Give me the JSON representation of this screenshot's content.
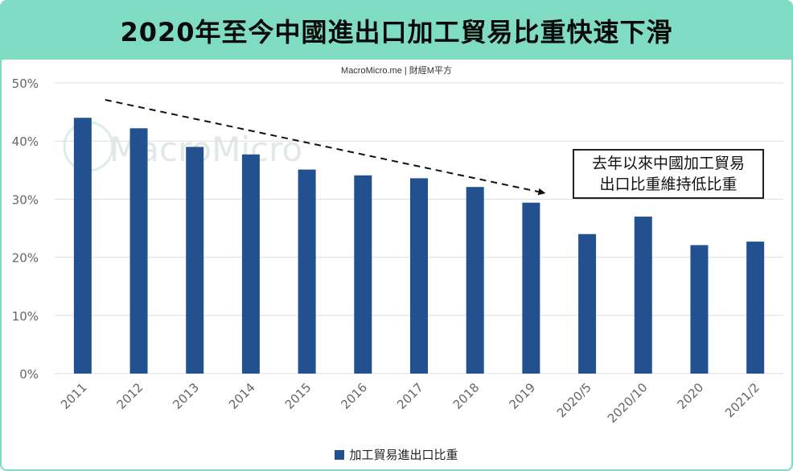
{
  "title": "2020年至今中國進出口加工貿易比重快速下滑",
  "source": "MacroMicro.me | 財經M平方",
  "watermark": "MacroMicro",
  "annotation": {
    "line1": "去年以來中國加工貿易",
    "line2": "出口比重維持低比重"
  },
  "colors": {
    "header": "#7fdcc3",
    "bar": "#23508f",
    "grid": "#dddddd",
    "axis_text": "#666666"
  },
  "chart_data": {
    "type": "bar",
    "categories": [
      "2011",
      "2012",
      "2013",
      "2014",
      "2015",
      "2016",
      "2017",
      "2018",
      "2019",
      "2020/5",
      "2020/10",
      "2020",
      "2021/2"
    ],
    "series": [
      {
        "name": "加工貿易進出口比重",
        "values": [
          44.0,
          42.2,
          39.0,
          37.7,
          35.1,
          34.1,
          33.6,
          32.1,
          29.4,
          24.0,
          27.0,
          22.1,
          22.7
        ]
      }
    ],
    "ylim": [
      0,
      50
    ],
    "yticks": [
      0,
      10,
      20,
      30,
      40,
      50
    ],
    "ytick_labels": [
      "0%",
      "10%",
      "20%",
      "30%",
      "40%",
      "50%"
    ],
    "grid": true,
    "legend_position": "bottom",
    "trend_arrow": {
      "from_category": "2011",
      "to_category": "2019",
      "style": "dashed"
    }
  }
}
